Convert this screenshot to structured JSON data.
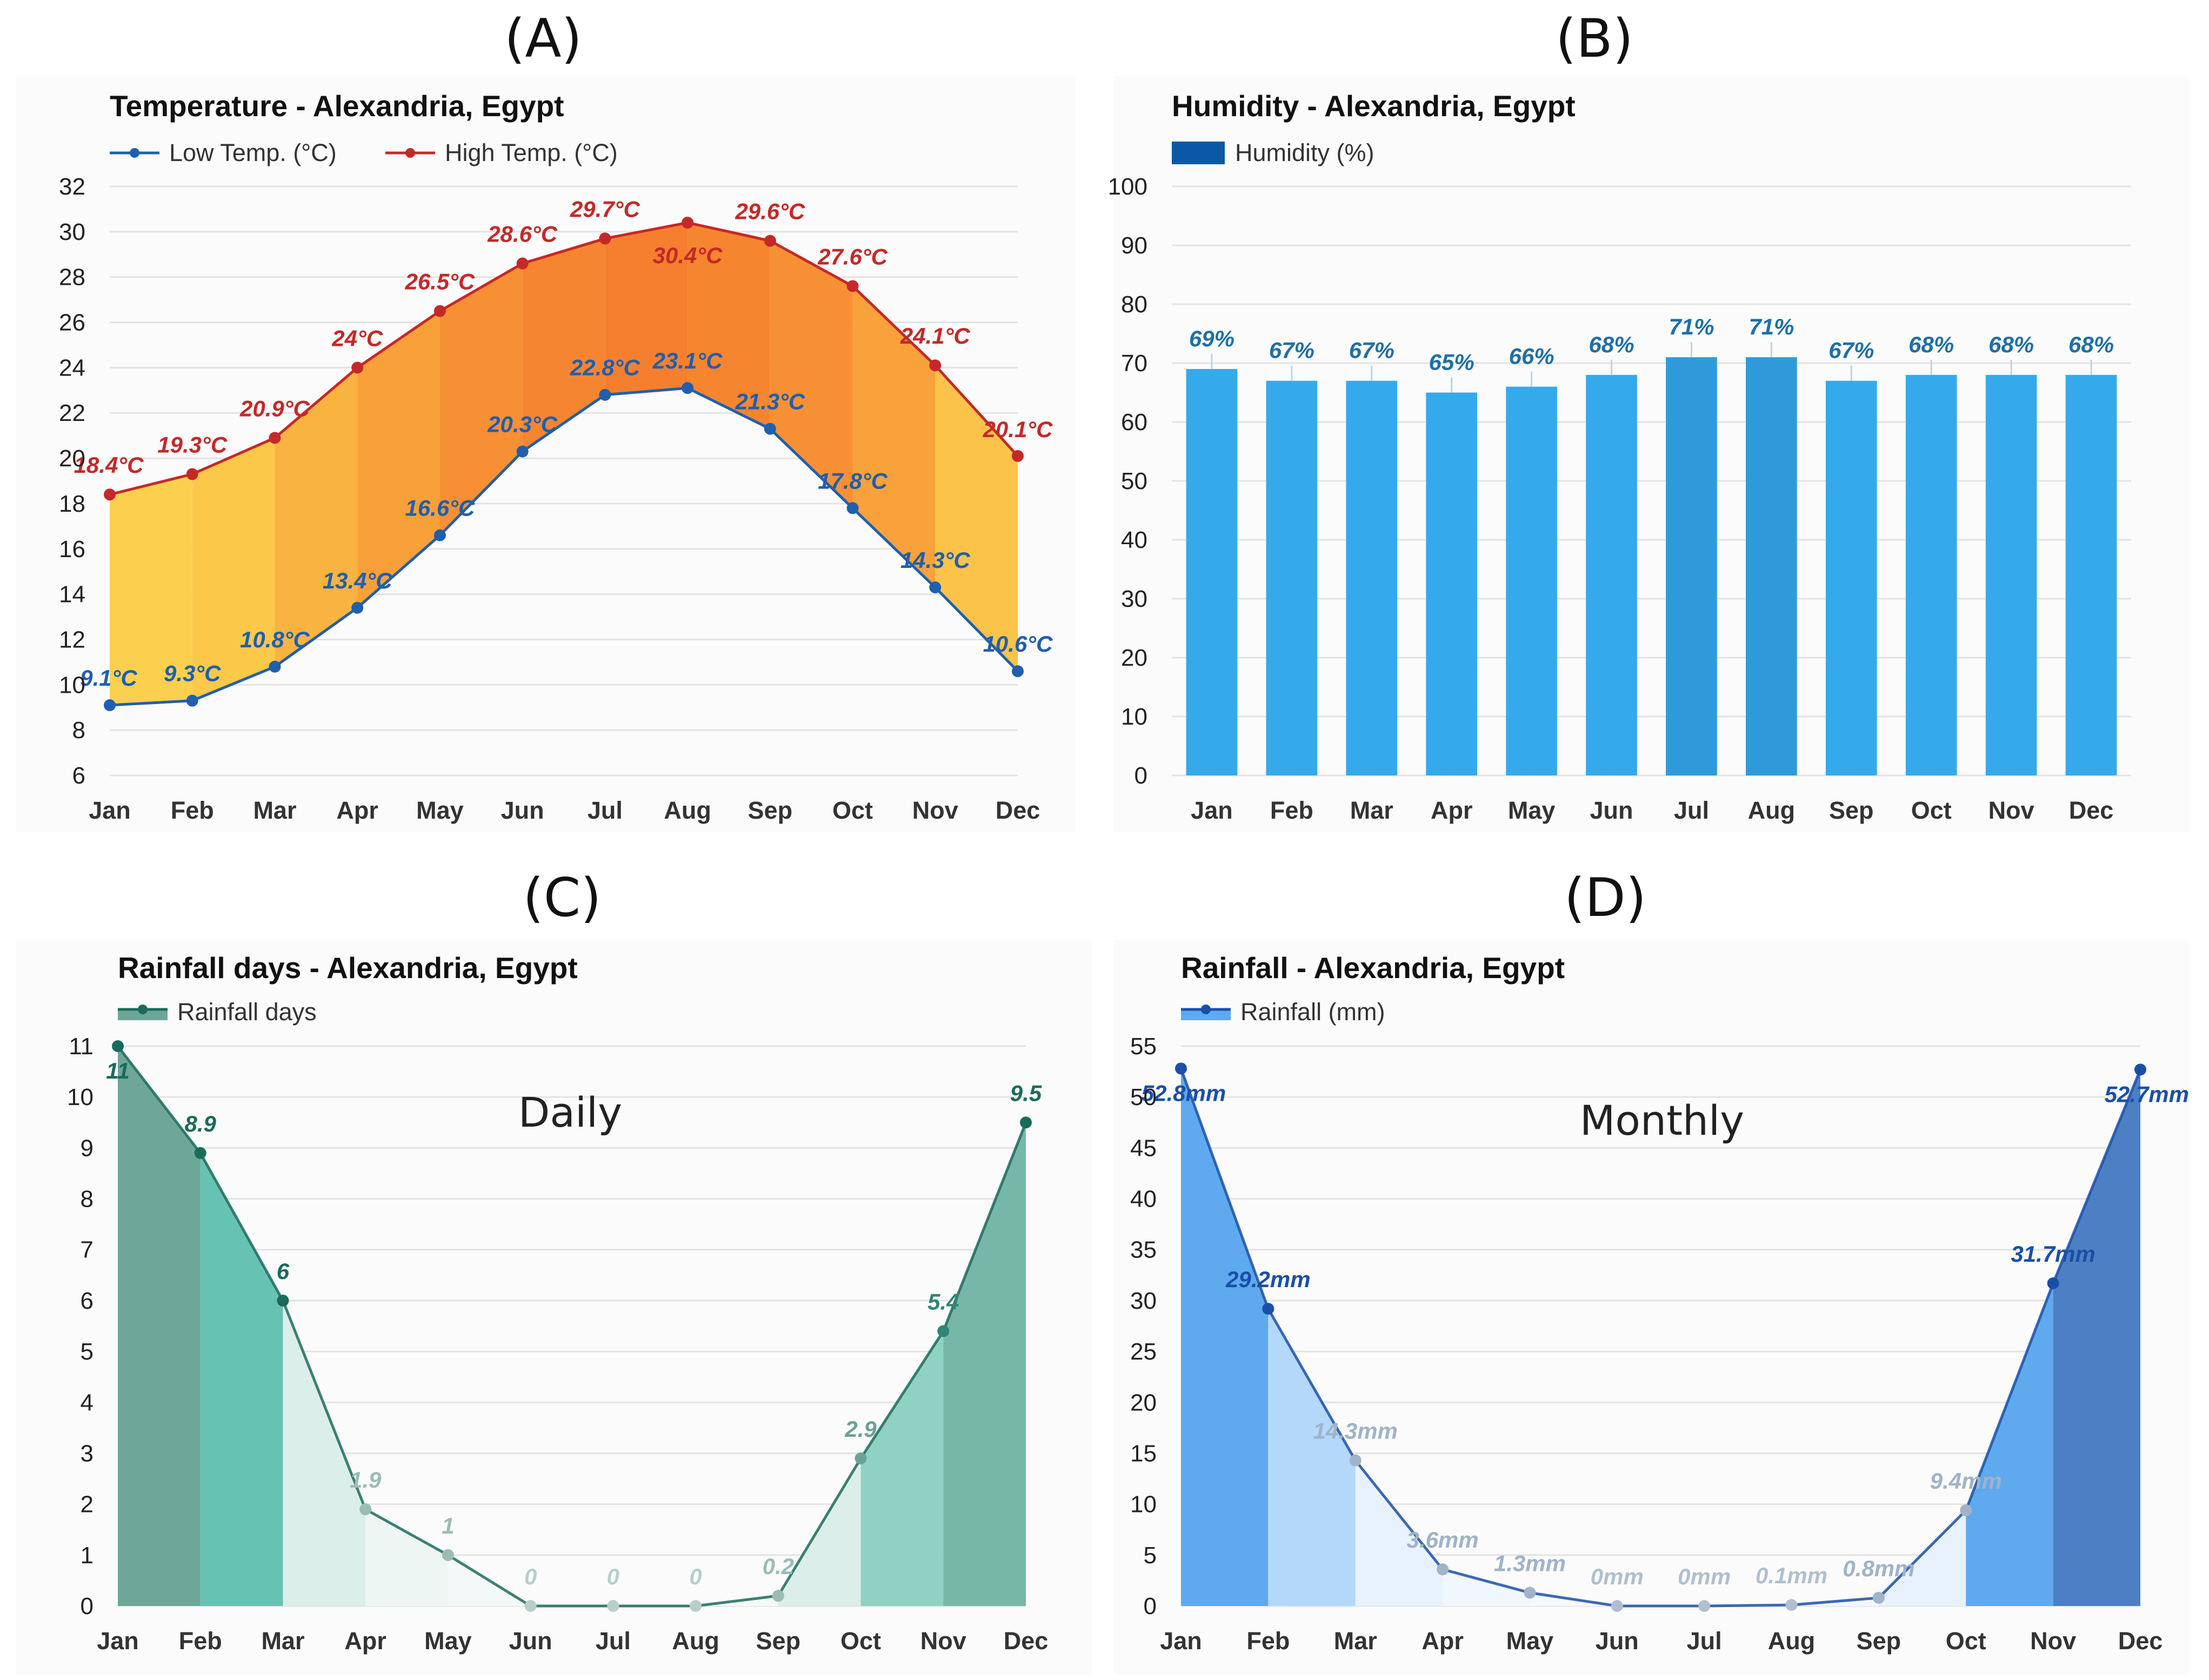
{
  "figure": {
    "panel_letters": [
      "(A)",
      "(B)",
      "(C)",
      "(D)"
    ]
  },
  "chart_data": [
    {
      "type": "area",
      "title": "Temperature - Alexandria, Egypt",
      "categories": [
        "Jan",
        "Feb",
        "Mar",
        "Apr",
        "May",
        "Jun",
        "Jul",
        "Aug",
        "Sep",
        "Oct",
        "Nov",
        "Dec"
      ],
      "series": [
        {
          "name": "Low Temp. (°C)",
          "color": "#1f5fae",
          "values": [
            9.1,
            9.3,
            10.8,
            13.4,
            16.6,
            20.3,
            22.8,
            23.1,
            21.3,
            17.8,
            14.3,
            10.6
          ],
          "labels": [
            "9.1°C",
            "9.3°C",
            "10.8°C",
            "13.4°C",
            "16.6°C",
            "20.3°C",
            "22.8°C",
            "23.1°C",
            "21.3°C",
            "17.8°C",
            "14.3°C",
            "10.6°C"
          ]
        },
        {
          "name": "High Temp. (°C)",
          "color": "#c62828",
          "values": [
            18.4,
            19.3,
            20.9,
            24,
            26.5,
            28.6,
            29.7,
            30.4,
            29.6,
            27.6,
            24.1,
            20.1
          ],
          "labels": [
            "18.4°C",
            "19.3°C",
            "20.9°C",
            "24°C",
            "26.5°C",
            "28.6°C",
            "29.7°C",
            "30.4°C",
            "29.6°C",
            "27.6°C",
            "24.1°C",
            "20.1°C"
          ]
        }
      ],
      "ylim": [
        6,
        32
      ],
      "yticks": [
        "6",
        "8",
        "10",
        "12",
        "14",
        "16",
        "18",
        "20",
        "22",
        "24",
        "26",
        "28",
        "30",
        "32"
      ],
      "grid": true,
      "legend_position": "top-left",
      "band_colors": [
        "#fcd04f",
        "#fbc84a",
        "#f9b340",
        "#f8a039",
        "#f78f34",
        "#f68531",
        "#f57f2f",
        "#f6852f",
        "#f79034",
        "#f9a13a",
        "#fbc349",
        "#fcd04f"
      ]
    },
    {
      "type": "bar",
      "title": "Humidity - Alexandria, Egypt",
      "categories": [
        "Jan",
        "Feb",
        "Mar",
        "Apr",
        "May",
        "Jun",
        "Jul",
        "Aug",
        "Sep",
        "Oct",
        "Nov",
        "Dec"
      ],
      "series": [
        {
          "name": "Humidity (%)",
          "color": "#0d58a6",
          "values": [
            69,
            67,
            67,
            65,
            66,
            68,
            71,
            71,
            67,
            68,
            68,
            68
          ],
          "labels": [
            "69%",
            "67%",
            "67%",
            "65%",
            "66%",
            "68%",
            "71%",
            "71%",
            "67%",
            "68%",
            "68%",
            "68%"
          ]
        }
      ],
      "bar_colors": [
        "#35aaea",
        "#35aaea",
        "#35aaea",
        "#35aaea",
        "#35aaea",
        "#35aaea",
        "#2e9bd8",
        "#2e9bd8",
        "#35aaea",
        "#35aaea",
        "#35aaea",
        "#35aaea"
      ],
      "label_color": "#1f6fa8",
      "ylim": [
        0,
        100
      ],
      "yticks": [
        "0",
        "10",
        "20",
        "30",
        "40",
        "50",
        "60",
        "70",
        "80",
        "90",
        "100"
      ],
      "grid": true,
      "legend_position": "top-left"
    },
    {
      "type": "area",
      "title": "Rainfall days - Alexandria, Egypt",
      "annotation": "Daily",
      "categories": [
        "Jan",
        "Feb",
        "Mar",
        "Apr",
        "May",
        "Jun",
        "Jul",
        "Aug",
        "Sep",
        "Oct",
        "Nov",
        "Dec"
      ],
      "series": [
        {
          "name": "Rainfall days",
          "color": "#1b6b5a",
          "values": [
            11,
            8.9,
            6,
            1.9,
            1,
            0,
            0,
            0,
            0.2,
            2.9,
            5.4,
            9.5
          ],
          "labels": [
            "11",
            "8.9",
            "6",
            "1.9",
            "1",
            "0",
            "0",
            "0",
            "0.2",
            "2.9",
            "5.4",
            "9.5"
          ]
        }
      ],
      "band_colors": [
        "#6ea798",
        "#66c2b2",
        "#dceeea",
        "#eef6f4",
        "#f3f9f8",
        "#f8fbfb",
        "#f8fbfb",
        "#f5faf9",
        "#dceeea",
        "#8fd1c3",
        "#77b7a8",
        "#6ea798"
      ],
      "label_colors": [
        "#1b6b5a",
        "#1b6b5a",
        "#1b6b5a",
        "#9bbcb5",
        "#9bbcb5",
        "#b7cfca",
        "#b7cfca",
        "#b7cfca",
        "#9bbcb5",
        "#6aa297",
        "#2f8577",
        "#1b6b5a"
      ],
      "ylim": [
        0,
        11
      ],
      "yticks": [
        "0",
        "1",
        "2",
        "3",
        "4",
        "5",
        "6",
        "7",
        "8",
        "9",
        "10",
        "11"
      ],
      "grid": true,
      "legend_position": "top-left"
    },
    {
      "type": "area",
      "title": "Rainfall - Alexandria, Egypt",
      "annotation": "Monthly",
      "categories": [
        "Jan",
        "Feb",
        "Mar",
        "Apr",
        "May",
        "Jun",
        "Jul",
        "Aug",
        "Sep",
        "Oct",
        "Nov",
        "Dec"
      ],
      "series": [
        {
          "name": "Rainfall (mm)",
          "color": "#1a4fa8",
          "values": [
            52.8,
            29.2,
            14.3,
            3.6,
            1.3,
            0,
            0,
            0.1,
            0.8,
            9.4,
            31.7,
            52.7
          ],
          "labels": [
            "52.8mm",
            "29.2mm",
            "14.3mm",
            "3.6mm",
            "1.3mm",
            "0mm",
            "0mm",
            "0.1mm",
            "0.8mm",
            "9.4mm",
            "31.7mm",
            "52.7mm"
          ]
        }
      ],
      "band_colors": [
        "#5fa9ee",
        "#b3d8fa",
        "#e7f2fd",
        "#f1f7fe",
        "#f5f9fe",
        "#f8fbff",
        "#f8fbff",
        "#f3f8fe",
        "#e7f2fd",
        "#5fa9ee",
        "#4d7fc4",
        "#4d7fc4"
      ],
      "label_colors": [
        "#1a4fa8",
        "#1a4fa8",
        "#9fb3c9",
        "#9fb3c9",
        "#9fb3c9",
        "#b0bfcf",
        "#b0bfcf",
        "#b0bfcf",
        "#9fb3c9",
        "#9fb3c9",
        "#1a4fa8",
        "#1a4fa8"
      ],
      "ylim": [
        0,
        55
      ],
      "yticks": [
        "0",
        "5",
        "10",
        "15",
        "20",
        "25",
        "30",
        "35",
        "40",
        "45",
        "50",
        "55"
      ],
      "grid": true,
      "legend_position": "top-left"
    }
  ]
}
